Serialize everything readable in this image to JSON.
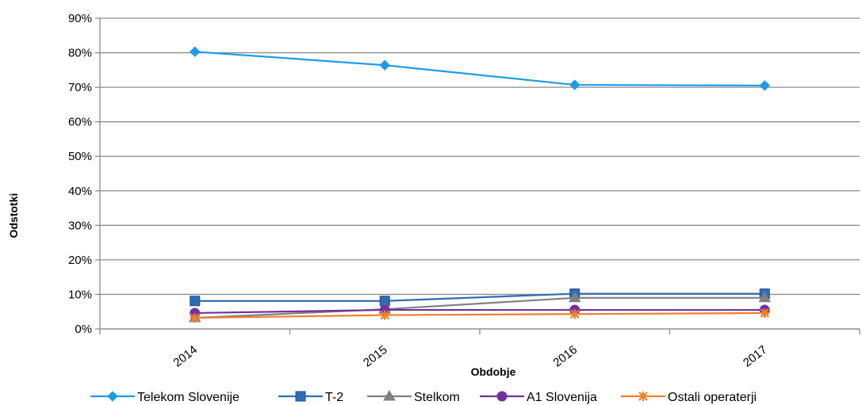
{
  "chart_data": {
    "type": "line",
    "title": "",
    "xlabel": "Obdobje",
    "ylabel": "Odstotki",
    "categories": [
      "2014",
      "2015",
      "2016",
      "2017"
    ],
    "ylim": [
      0,
      90
    ],
    "yticks": [
      0,
      10,
      20,
      30,
      40,
      50,
      60,
      70,
      80,
      90
    ],
    "ytick_labels": [
      "0%",
      "10%",
      "20%",
      "30%",
      "40%",
      "50%",
      "60%",
      "70%",
      "80%",
      "90%"
    ],
    "grid": true,
    "legend_position": "bottom",
    "series": [
      {
        "name": "Telekom Slovenije",
        "values": [
          80.3,
          76.4,
          70.7,
          70.5
        ],
        "color": "#1E9BE8",
        "marker": "diamond"
      },
      {
        "name": "T-2",
        "values": [
          8.1,
          8.1,
          10.2,
          10.2
        ],
        "color": "#2E6DB4",
        "marker": "square"
      },
      {
        "name": "Stelkom",
        "values": [
          3.2,
          5.7,
          9.0,
          9.0
        ],
        "color": "#808080",
        "marker": "triangle"
      },
      {
        "name": "A1 Slovenija",
        "values": [
          4.6,
          5.5,
          5.5,
          5.5
        ],
        "color": "#7030A0",
        "marker": "circle"
      },
      {
        "name": "Ostali operaterji",
        "values": [
          3.2,
          4.0,
          4.3,
          4.6
        ],
        "color": "#F07F2A",
        "marker": "star"
      }
    ]
  }
}
